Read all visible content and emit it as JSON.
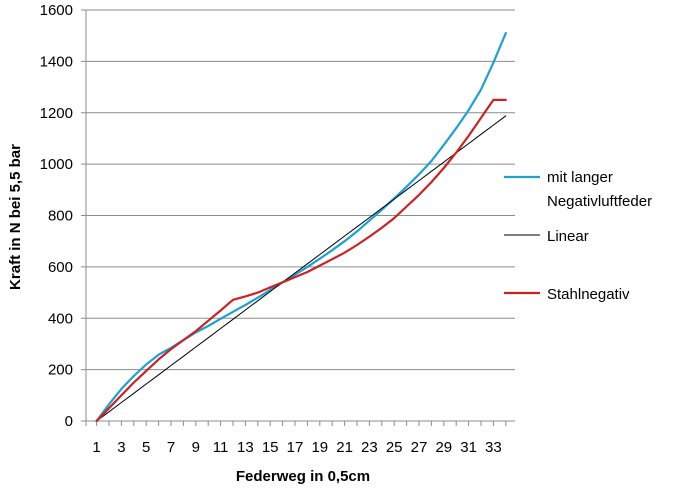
{
  "chart_data": {
    "type": "line",
    "xlabel": "Federweg in 0,5cm",
    "ylabel": "Kraft in N bei 5,5 bar",
    "ylim": [
      0,
      1600
    ],
    "yticks": [
      0,
      200,
      400,
      600,
      800,
      1000,
      1200,
      1400,
      1600
    ],
    "xlim": [
      1,
      34
    ],
    "xticks": [
      1,
      3,
      5,
      7,
      9,
      11,
      13,
      15,
      17,
      19,
      21,
      23,
      25,
      27,
      29,
      31,
      33
    ],
    "grid": "horizontal",
    "legend_position": "right",
    "x": [
      1,
      2,
      3,
      4,
      5,
      6,
      7,
      8,
      9,
      10,
      11,
      12,
      13,
      14,
      15,
      16,
      17,
      18,
      19,
      20,
      21,
      22,
      23,
      24,
      25,
      26,
      27,
      28,
      29,
      30,
      31,
      32,
      33,
      34
    ],
    "series": [
      {
        "name": "mit langer Negativluftfeder",
        "color": "#1ba1d4",
        "values": [
          0,
          65,
          125,
          175,
          220,
          258,
          285,
          315,
          345,
          370,
          398,
          425,
          452,
          480,
          510,
          540,
          570,
          600,
          632,
          665,
          700,
          738,
          780,
          822,
          866,
          912,
          960,
          1012,
          1075,
          1140,
          1210,
          1290,
          1395,
          1510
        ]
      },
      {
        "name": "Linear",
        "color": "#000000",
        "values": [
          0,
          36,
          72,
          108,
          144,
          180,
          216,
          252,
          288,
          324,
          360,
          396,
          432,
          468,
          504,
          540,
          576,
          612,
          648,
          684,
          720,
          756,
          792,
          828,
          864,
          900,
          936,
          972,
          1008,
          1044,
          1080,
          1116,
          1152,
          1188
        ]
      },
      {
        "name": "Stahlnegativ",
        "color": "#cc2222",
        "values": [
          0,
          50,
          100,
          150,
          195,
          240,
          280,
          315,
          350,
          390,
          430,
          472,
          485,
          500,
          520,
          540,
          560,
          580,
          605,
          630,
          655,
          685,
          718,
          752,
          790,
          835,
          880,
          930,
          985,
          1045,
          1110,
          1180,
          1250,
          1250
        ]
      }
    ]
  }
}
